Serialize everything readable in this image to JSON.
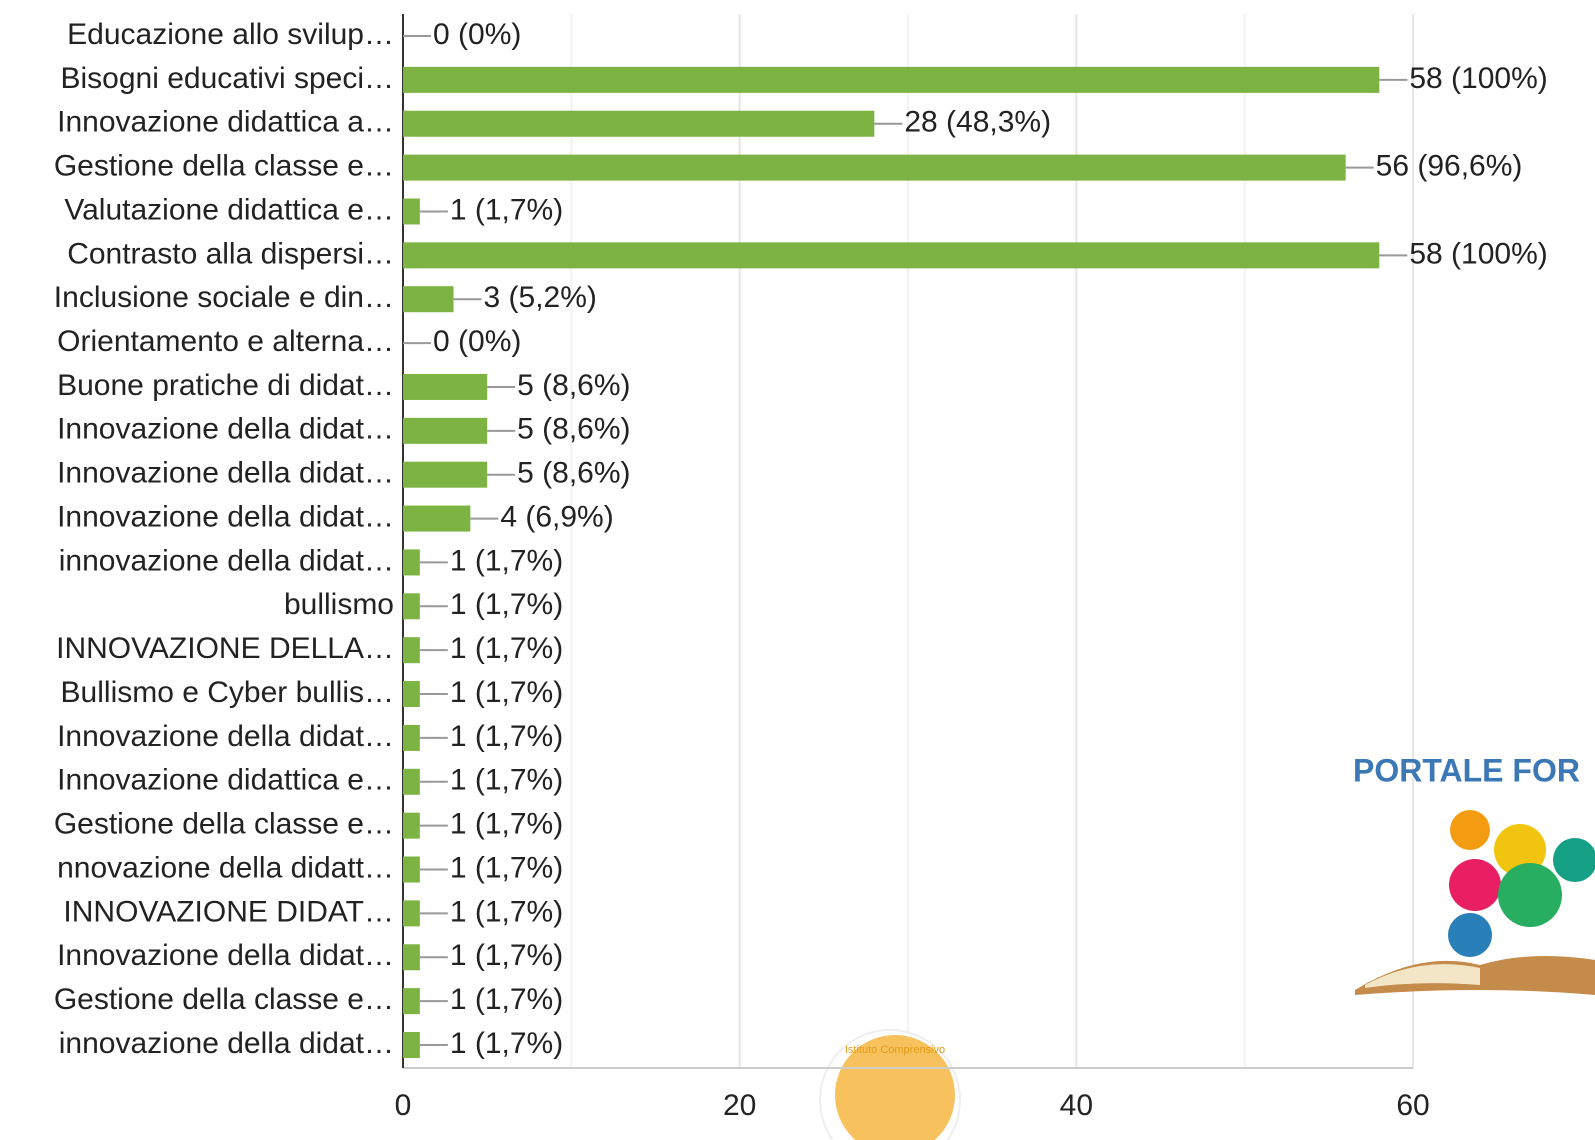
{
  "chart_data": {
    "type": "barh",
    "categories": [
      "Educazione allo svilup…",
      "Bisogni educativi speci…",
      "Innovazione didattica a…",
      "Gestione della classe e…",
      "Valutazione didattica e…",
      "Contrasto alla dispersi…",
      "Inclusione sociale e din…",
      "Orientamento e alterna…",
      "Buone pratiche di didat…",
      "Innovazione della didat…",
      "Innovazione della didat…",
      "Innovazione della didat…",
      "innovazione della didat…",
      "bullismo",
      "INNOVAZIONE DELLA…",
      "Bullismo e Cyber bullis…",
      "Innovazione della didat…",
      "Innovazione didattica e…",
      "Gestione della classe e…",
      "nnovazione della didatt…",
      "INNOVAZIONE DIDAT…",
      "Innovazione della didat…",
      "Gestione della classe e…",
      "innovazione della didat…"
    ],
    "values": [
      0,
      58,
      28,
      56,
      1,
      58,
      3,
      0,
      5,
      5,
      5,
      4,
      1,
      1,
      1,
      1,
      1,
      1,
      1,
      1,
      1,
      1,
      1,
      1
    ],
    "value_labels": [
      "0 (0%)",
      "58 (100%)",
      "28 (48,3%)",
      "56 (96,6%)",
      "1 (1,7%)",
      "58 (100%)",
      "3 (5,2%)",
      "0 (0%)",
      "5 (8,6%)",
      "5 (8,6%)",
      "5 (8,6%)",
      "4 (6,9%)",
      "1 (1,7%)",
      "1 (1,7%)",
      "1 (1,7%)",
      "1 (1,7%)",
      "1 (1,7%)",
      "1 (1,7%)",
      "1 (1,7%)",
      "1 (1,7%)",
      "1 (1,7%)",
      "1 (1,7%)",
      "1 (1,7%)",
      "1 (1,7%)"
    ],
    "color": "#7cb342",
    "xlim": [
      0,
      60
    ],
    "xticks": [
      0,
      20,
      40,
      60
    ],
    "minor_grid": [
      10,
      30,
      50
    ],
    "grid": true
  },
  "watermark": {
    "text": "PORTALE FOR",
    "badge": "Istituto Comprensivo"
  }
}
